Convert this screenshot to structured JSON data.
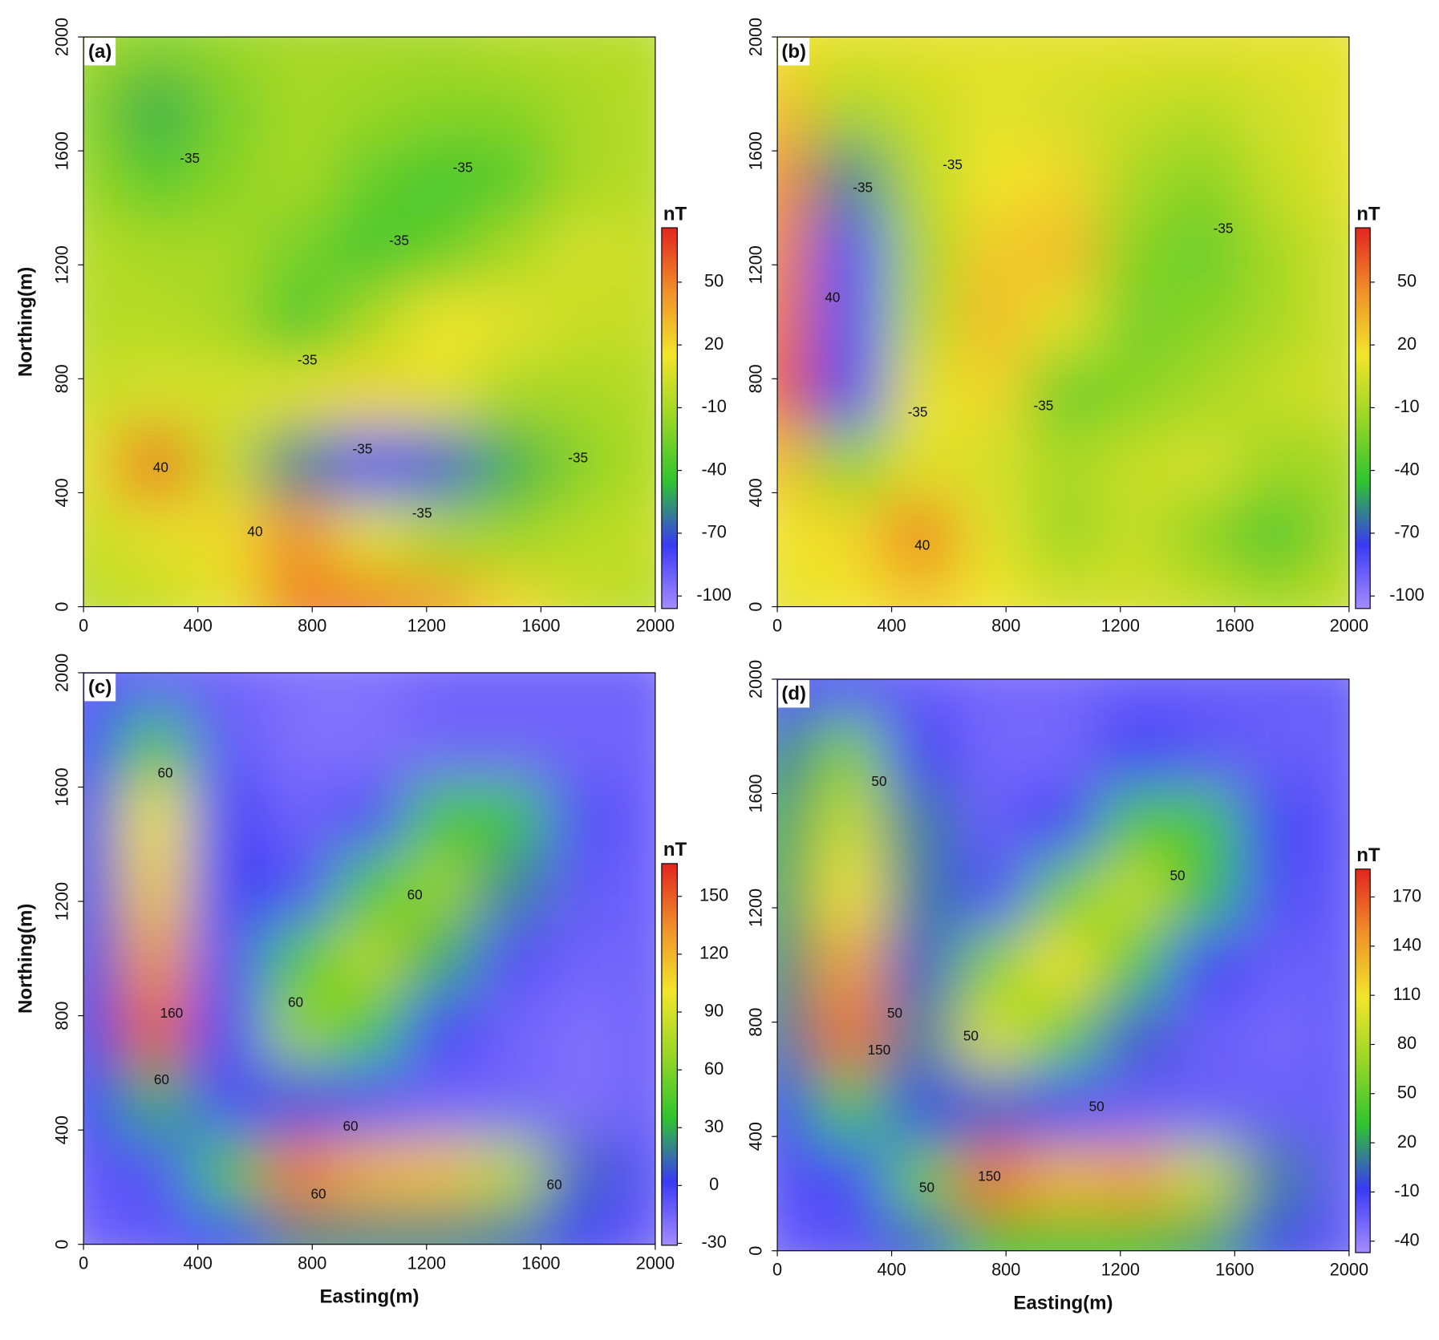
{
  "chart_data": [
    {
      "type": "heatmap",
      "panel_label": "(a)",
      "ylabel": "Northing(m)",
      "colorbar_label": "nT",
      "xlim": [
        0,
        2000
      ],
      "ylim": [
        0,
        2000
      ],
      "xticks": [
        0,
        400,
        800,
        1200,
        1600,
        2000
      ],
      "yticks": [
        0,
        400,
        800,
        1200,
        1600,
        2000
      ],
      "clim": [
        -106,
        76
      ],
      "cticks": [
        -100,
        -70,
        -40,
        -10,
        20,
        50
      ],
      "colormap": [
        "#a58cff",
        "#3a3af5",
        "#2fc42f",
        "#9ad626",
        "#f2e52a",
        "#f0902a",
        "#e3241e"
      ],
      "x": [
        0,
        250,
        500,
        750,
        1000,
        1250,
        1500,
        1750,
        2000
      ],
      "y": [
        2000,
        1750,
        1500,
        1250,
        1000,
        750,
        500,
        250,
        0
      ],
      "z": [
        [
          -10,
          -20,
          -15,
          -10,
          -10,
          -10,
          -5,
          -5,
          -5
        ],
        [
          -20,
          -50,
          -25,
          -10,
          -15,
          -20,
          -20,
          -10,
          -5
        ],
        [
          -15,
          -35,
          -20,
          -10,
          -30,
          -40,
          -35,
          -10,
          -5
        ],
        [
          -5,
          -10,
          -10,
          -25,
          -40,
          -30,
          -10,
          5,
          0
        ],
        [
          -5,
          -5,
          -10,
          -40,
          -10,
          15,
          10,
          0,
          0
        ],
        [
          0,
          5,
          5,
          10,
          20,
          10,
          -10,
          -10,
          -5
        ],
        [
          10,
          55,
          0,
          -60,
          -80,
          -70,
          -50,
          -20,
          -5
        ],
        [
          0,
          10,
          20,
          45,
          10,
          -10,
          -15,
          -5,
          0
        ],
        [
          -5,
          0,
          10,
          50,
          50,
          40,
          20,
          0,
          -5
        ]
      ],
      "contour_labels": [
        {
          "value": -35,
          "x": 372,
          "y": 1571
        },
        {
          "value": -35,
          "x": 1327,
          "y": 1539
        },
        {
          "value": -35,
          "x": 1104,
          "y": 1282
        },
        {
          "value": -35,
          "x": 783,
          "y": 863
        },
        {
          "value": -35,
          "x": 976,
          "y": 551
        },
        {
          "value": -35,
          "x": 1184,
          "y": 325
        },
        {
          "value": -35,
          "x": 1730,
          "y": 519
        },
        {
          "value": 40,
          "x": 270,
          "y": 486
        },
        {
          "value": 40,
          "x": 600,
          "y": 261
        }
      ]
    },
    {
      "type": "heatmap",
      "panel_label": "(b)",
      "colorbar_label": "nT",
      "xlim": [
        0,
        2000
      ],
      "ylim": [
        0,
        2000
      ],
      "xticks": [
        0,
        400,
        800,
        1200,
        1600,
        2000
      ],
      "yticks": [
        0,
        400,
        800,
        1200,
        1600,
        2000
      ],
      "clim": [
        -106,
        76
      ],
      "cticks": [
        -100,
        -70,
        -40,
        -10,
        20,
        50
      ],
      "colormap": [
        "#a58cff",
        "#3a3af5",
        "#2fc42f",
        "#9ad626",
        "#f2e52a",
        "#f0902a",
        "#e3241e"
      ],
      "x": [
        0,
        250,
        500,
        750,
        1000,
        1250,
        1500,
        1750,
        2000
      ],
      "y": [
        2000,
        1750,
        1500,
        1250,
        1000,
        750,
        500,
        250,
        0
      ],
      "z": [
        [
          15,
          10,
          10,
          10,
          10,
          10,
          10,
          10,
          10
        ],
        [
          30,
          -10,
          0,
          10,
          5,
          0,
          -5,
          5,
          10
        ],
        [
          45,
          -60,
          -5,
          15,
          20,
          -10,
          -20,
          0,
          10
        ],
        [
          50,
          -80,
          -10,
          25,
          30,
          -20,
          -30,
          -10,
          5
        ],
        [
          55,
          -80,
          -5,
          30,
          10,
          -25,
          -20,
          -10,
          5
        ],
        [
          60,
          -75,
          10,
          20,
          -30,
          -20,
          -10,
          0,
          5
        ],
        [
          30,
          -20,
          10,
          5,
          -10,
          0,
          5,
          -15,
          -10
        ],
        [
          15,
          20,
          50,
          10,
          -15,
          0,
          -20,
          -40,
          -10
        ],
        [
          10,
          15,
          25,
          15,
          5,
          5,
          0,
          -10,
          0
        ]
      ],
      "contour_labels": [
        {
          "value": -35,
          "x": 299,
          "y": 1468
        },
        {
          "value": -35,
          "x": 613,
          "y": 1549
        },
        {
          "value": -35,
          "x": 491,
          "y": 680
        },
        {
          "value": -35,
          "x": 931,
          "y": 702
        },
        {
          "value": -35,
          "x": 1560,
          "y": 1324
        },
        {
          "value": 40,
          "x": 193,
          "y": 1082
        },
        {
          "value": 40,
          "x": 507,
          "y": 213
        }
      ]
    },
    {
      "type": "heatmap",
      "panel_label": "(c)",
      "xlabel": "Easting(m)",
      "ylabel": "Northing(m)",
      "colorbar_label": "nT",
      "xlim": [
        0,
        2000
      ],
      "ylim": [
        0,
        2000
      ],
      "xticks": [
        0,
        400,
        800,
        1200,
        1600,
        2000
      ],
      "yticks": [
        0,
        400,
        800,
        1200,
        1600,
        2000
      ],
      "clim": [
        -31,
        167
      ],
      "cticks": [
        -30,
        0,
        30,
        60,
        90,
        120,
        150
      ],
      "colormap": [
        "#a58cff",
        "#3a3af5",
        "#2fc42f",
        "#9ad626",
        "#f2e52a",
        "#f0902a",
        "#e3241e"
      ],
      "x": [
        0,
        250,
        500,
        750,
        1000,
        1250,
        1500,
        1750,
        2000
      ],
      "y": [
        2000,
        1750,
        1500,
        1250,
        1000,
        750,
        500,
        250,
        0
      ],
      "z": [
        [
          -10,
          -10,
          -15,
          -20,
          -20,
          -15,
          -15,
          -15,
          -15
        ],
        [
          0,
          40,
          -10,
          -20,
          -20,
          -15,
          -15,
          -15,
          -15
        ],
        [
          5,
          100,
          0,
          -15,
          -5,
          40,
          40,
          -5,
          -15
        ],
        [
          5,
          110,
          0,
          -5,
          40,
          70,
          20,
          -10,
          -15
        ],
        [
          5,
          130,
          -5,
          40,
          80,
          30,
          -5,
          -15,
          -15
        ],
        [
          5,
          150,
          0,
          70,
          40,
          0,
          -15,
          -20,
          -15
        ],
        [
          0,
          30,
          -5,
          5,
          -5,
          -15,
          -15,
          -20,
          -15
        ],
        [
          -10,
          -5,
          40,
          140,
          120,
          115,
          80,
          10,
          -10
        ],
        [
          -15,
          -10,
          0,
          20,
          20,
          20,
          15,
          0,
          -15
        ]
      ],
      "contour_labels": [
        {
          "value": 60,
          "x": 286,
          "y": 1646
        },
        {
          "value": 60,
          "x": 273,
          "y": 573
        },
        {
          "value": 160,
          "x": 308,
          "y": 806
        },
        {
          "value": 60,
          "x": 742,
          "y": 844
        },
        {
          "value": 60,
          "x": 1159,
          "y": 1220
        },
        {
          "value": 60,
          "x": 934,
          "y": 411
        },
        {
          "value": 60,
          "x": 822,
          "y": 173
        },
        {
          "value": 60,
          "x": 1647,
          "y": 205
        }
      ]
    },
    {
      "type": "heatmap",
      "panel_label": "(d)",
      "xlabel": "Easting(m)",
      "colorbar_label": "nT",
      "xlim": [
        0,
        2000
      ],
      "ylim": [
        0,
        2000
      ],
      "xticks": [
        0,
        400,
        800,
        1200,
        1600,
        2000
      ],
      "yticks": [
        0,
        400,
        800,
        1200,
        1600,
        2000
      ],
      "clim": [
        -47,
        187
      ],
      "cticks": [
        -40,
        -10,
        20,
        50,
        80,
        110,
        140,
        170
      ],
      "colormap": [
        "#a58cff",
        "#3a3af5",
        "#2fc42f",
        "#9ad626",
        "#f2e52a",
        "#f0902a",
        "#e3241e"
      ],
      "x": [
        0,
        250,
        500,
        750,
        1000,
        1250,
        1500,
        1750,
        2000
      ],
      "y": [
        2000,
        1750,
        1500,
        1250,
        1000,
        750,
        500,
        250,
        0
      ],
      "z": [
        [
          -20,
          -15,
          -25,
          -30,
          -30,
          -25,
          -25,
          -25,
          -25
        ],
        [
          10,
          60,
          -10,
          -30,
          -30,
          -10,
          -20,
          -25,
          -25
        ],
        [
          20,
          90,
          10,
          -25,
          -10,
          40,
          40,
          -10,
          -25
        ],
        [
          20,
          110,
          10,
          -15,
          50,
          90,
          30,
          -15,
          -25
        ],
        [
          15,
          140,
          0,
          60,
          110,
          40,
          -10,
          -25,
          -25
        ],
        [
          10,
          160,
          10,
          100,
          50,
          0,
          -25,
          -30,
          -25
        ],
        [
          -5,
          40,
          -5,
          0,
          -10,
          -25,
          -25,
          -25,
          -25
        ],
        [
          -20,
          -10,
          50,
          160,
          130,
          140,
          90,
          10,
          -25
        ],
        [
          -25,
          -20,
          0,
          30,
          30,
          30,
          20,
          -5,
          -25
        ]
      ],
      "contour_labels": [
        {
          "value": 50,
          "x": 356,
          "y": 1640
        },
        {
          "value": 50,
          "x": 411,
          "y": 828
        },
        {
          "value": 150,
          "x": 356,
          "y": 700
        },
        {
          "value": 50,
          "x": 677,
          "y": 748
        },
        {
          "value": 50,
          "x": 1400,
          "y": 1310
        },
        {
          "value": 50,
          "x": 1117,
          "y": 501
        },
        {
          "value": 150,
          "x": 742,
          "y": 257
        },
        {
          "value": 50,
          "x": 523,
          "y": 218
        }
      ]
    }
  ]
}
